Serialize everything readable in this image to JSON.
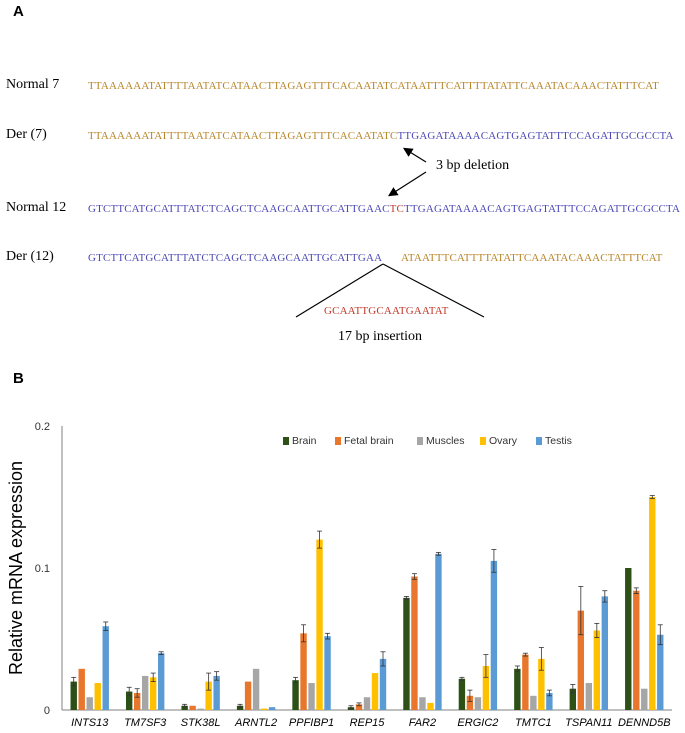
{
  "panel_a": {
    "label": "A",
    "rows": [
      {
        "label": "Normal 7",
        "segments": [
          {
            "text": "TTAAAAAATATTTTAATATCATAACTTAGAGTTTCACAATATCATAATTTCATTTTATATTCAAATACAAACTATTTCAT",
            "color": "gold"
          }
        ]
      },
      {
        "label": "Der (7)",
        "segments": [
          {
            "text": "TTAAAAAATATTTTAATATCATAACTTAGAGTTTCACAATATC",
            "color": "gold"
          },
          {
            "text": "TTGAGATAAAACAGTGAGTATTTCCAGATTGCGCCTA",
            "color": "blue"
          }
        ]
      },
      {
        "label": "Normal 12",
        "segments": [
          {
            "text": "GTCTTCATGCATTTATCTCAGCTCAAGCAATTGCATTGAAC",
            "color": "blue"
          },
          {
            "text": "TC",
            "color": "red"
          },
          {
            "text": "TTGAGATAAAACAGTGAGTATTTCCAGATTGCGCCTA",
            "color": "blue"
          }
        ]
      },
      {
        "label": "Der (12)",
        "segments": [
          {
            "text": "GTCTTCATGCATTTATCTCAGCTCAAGCAATTGCATTGAA",
            "color": "blue"
          }
        ]
      },
      {
        "label": "",
        "segments": [
          {
            "text": "ATAATTTCATTTTATATTCAAATACAAACTATTTCAT",
            "color": "gold"
          }
        ]
      }
    ],
    "deletion_label": "3 bp deletion",
    "insertion_seq": "GCAATTGCAATGAATAT",
    "insertion_label": "17 bp insertion"
  },
  "panel_b": {
    "label": "B",
    "chart_data": {
      "type": "bar",
      "title": "",
      "xlabel": "",
      "ylabel": "Relative mRNA expression",
      "ylim": [
        0,
        0.2
      ],
      "yticks": [
        "0",
        "0.1",
        "0.2"
      ],
      "legend_position": "top-right",
      "categories": [
        "INTS13",
        "TM7SF3",
        "STK38L",
        "ARNTL2",
        "PPFIBP1",
        "REP15",
        "FAR2",
        "ERGIC2",
        "TMTC1",
        "TSPAN11",
        "DENND5B"
      ],
      "series": [
        {
          "name": "Brain",
          "color": "#2d5016",
          "values": [
            0.02,
            0.013,
            0.003,
            0.003,
            0.021,
            0.002,
            0.079,
            0.022,
            0.029,
            0.015,
            0.1
          ],
          "errors": [
            0.003,
            0.003,
            0.001,
            0.001,
            0.002,
            0.001,
            0.001,
            0.001,
            0.002,
            0.003,
            0.0
          ]
        },
        {
          "name": "Fetal brain",
          "color": "#e8762c",
          "values": [
            0.029,
            0.012,
            0.003,
            0.02,
            0.054,
            0.004,
            0.094,
            0.01,
            0.039,
            0.07,
            0.084
          ],
          "errors": [
            0.0,
            0.003,
            0.0,
            0.0,
            0.006,
            0.001,
            0.002,
            0.004,
            0.001,
            0.017,
            0.002
          ]
        },
        {
          "name": "Muscles",
          "color": "#a6a6a6",
          "values": [
            0.009,
            0.024,
            0.001,
            0.029,
            0.019,
            0.009,
            0.009,
            0.009,
            0.01,
            0.019,
            0.015
          ],
          "errors": [
            0.0,
            0.0,
            0.0,
            0.0,
            0.0,
            0.0,
            0.0,
            0.0,
            0.0,
            0.0,
            0.0
          ]
        },
        {
          "name": "Ovary",
          "color": "#ffc000",
          "values": [
            0.019,
            0.023,
            0.02,
            0.001,
            0.12,
            0.026,
            0.005,
            0.031,
            0.036,
            0.056,
            0.15
          ],
          "errors": [
            0.0,
            0.003,
            0.006,
            0.0,
            0.006,
            0.0,
            0.0,
            0.008,
            0.008,
            0.005,
            0.001
          ]
        },
        {
          "name": "Testis",
          "color": "#5b9bd5",
          "values": [
            0.059,
            0.04,
            0.024,
            0.002,
            0.052,
            0.036,
            0.11,
            0.105,
            0.012,
            0.08,
            0.053
          ],
          "errors": [
            0.003,
            0.001,
            0.003,
            0.0,
            0.002,
            0.005,
            0.001,
            0.008,
            0.002,
            0.004,
            0.007
          ]
        }
      ]
    }
  }
}
